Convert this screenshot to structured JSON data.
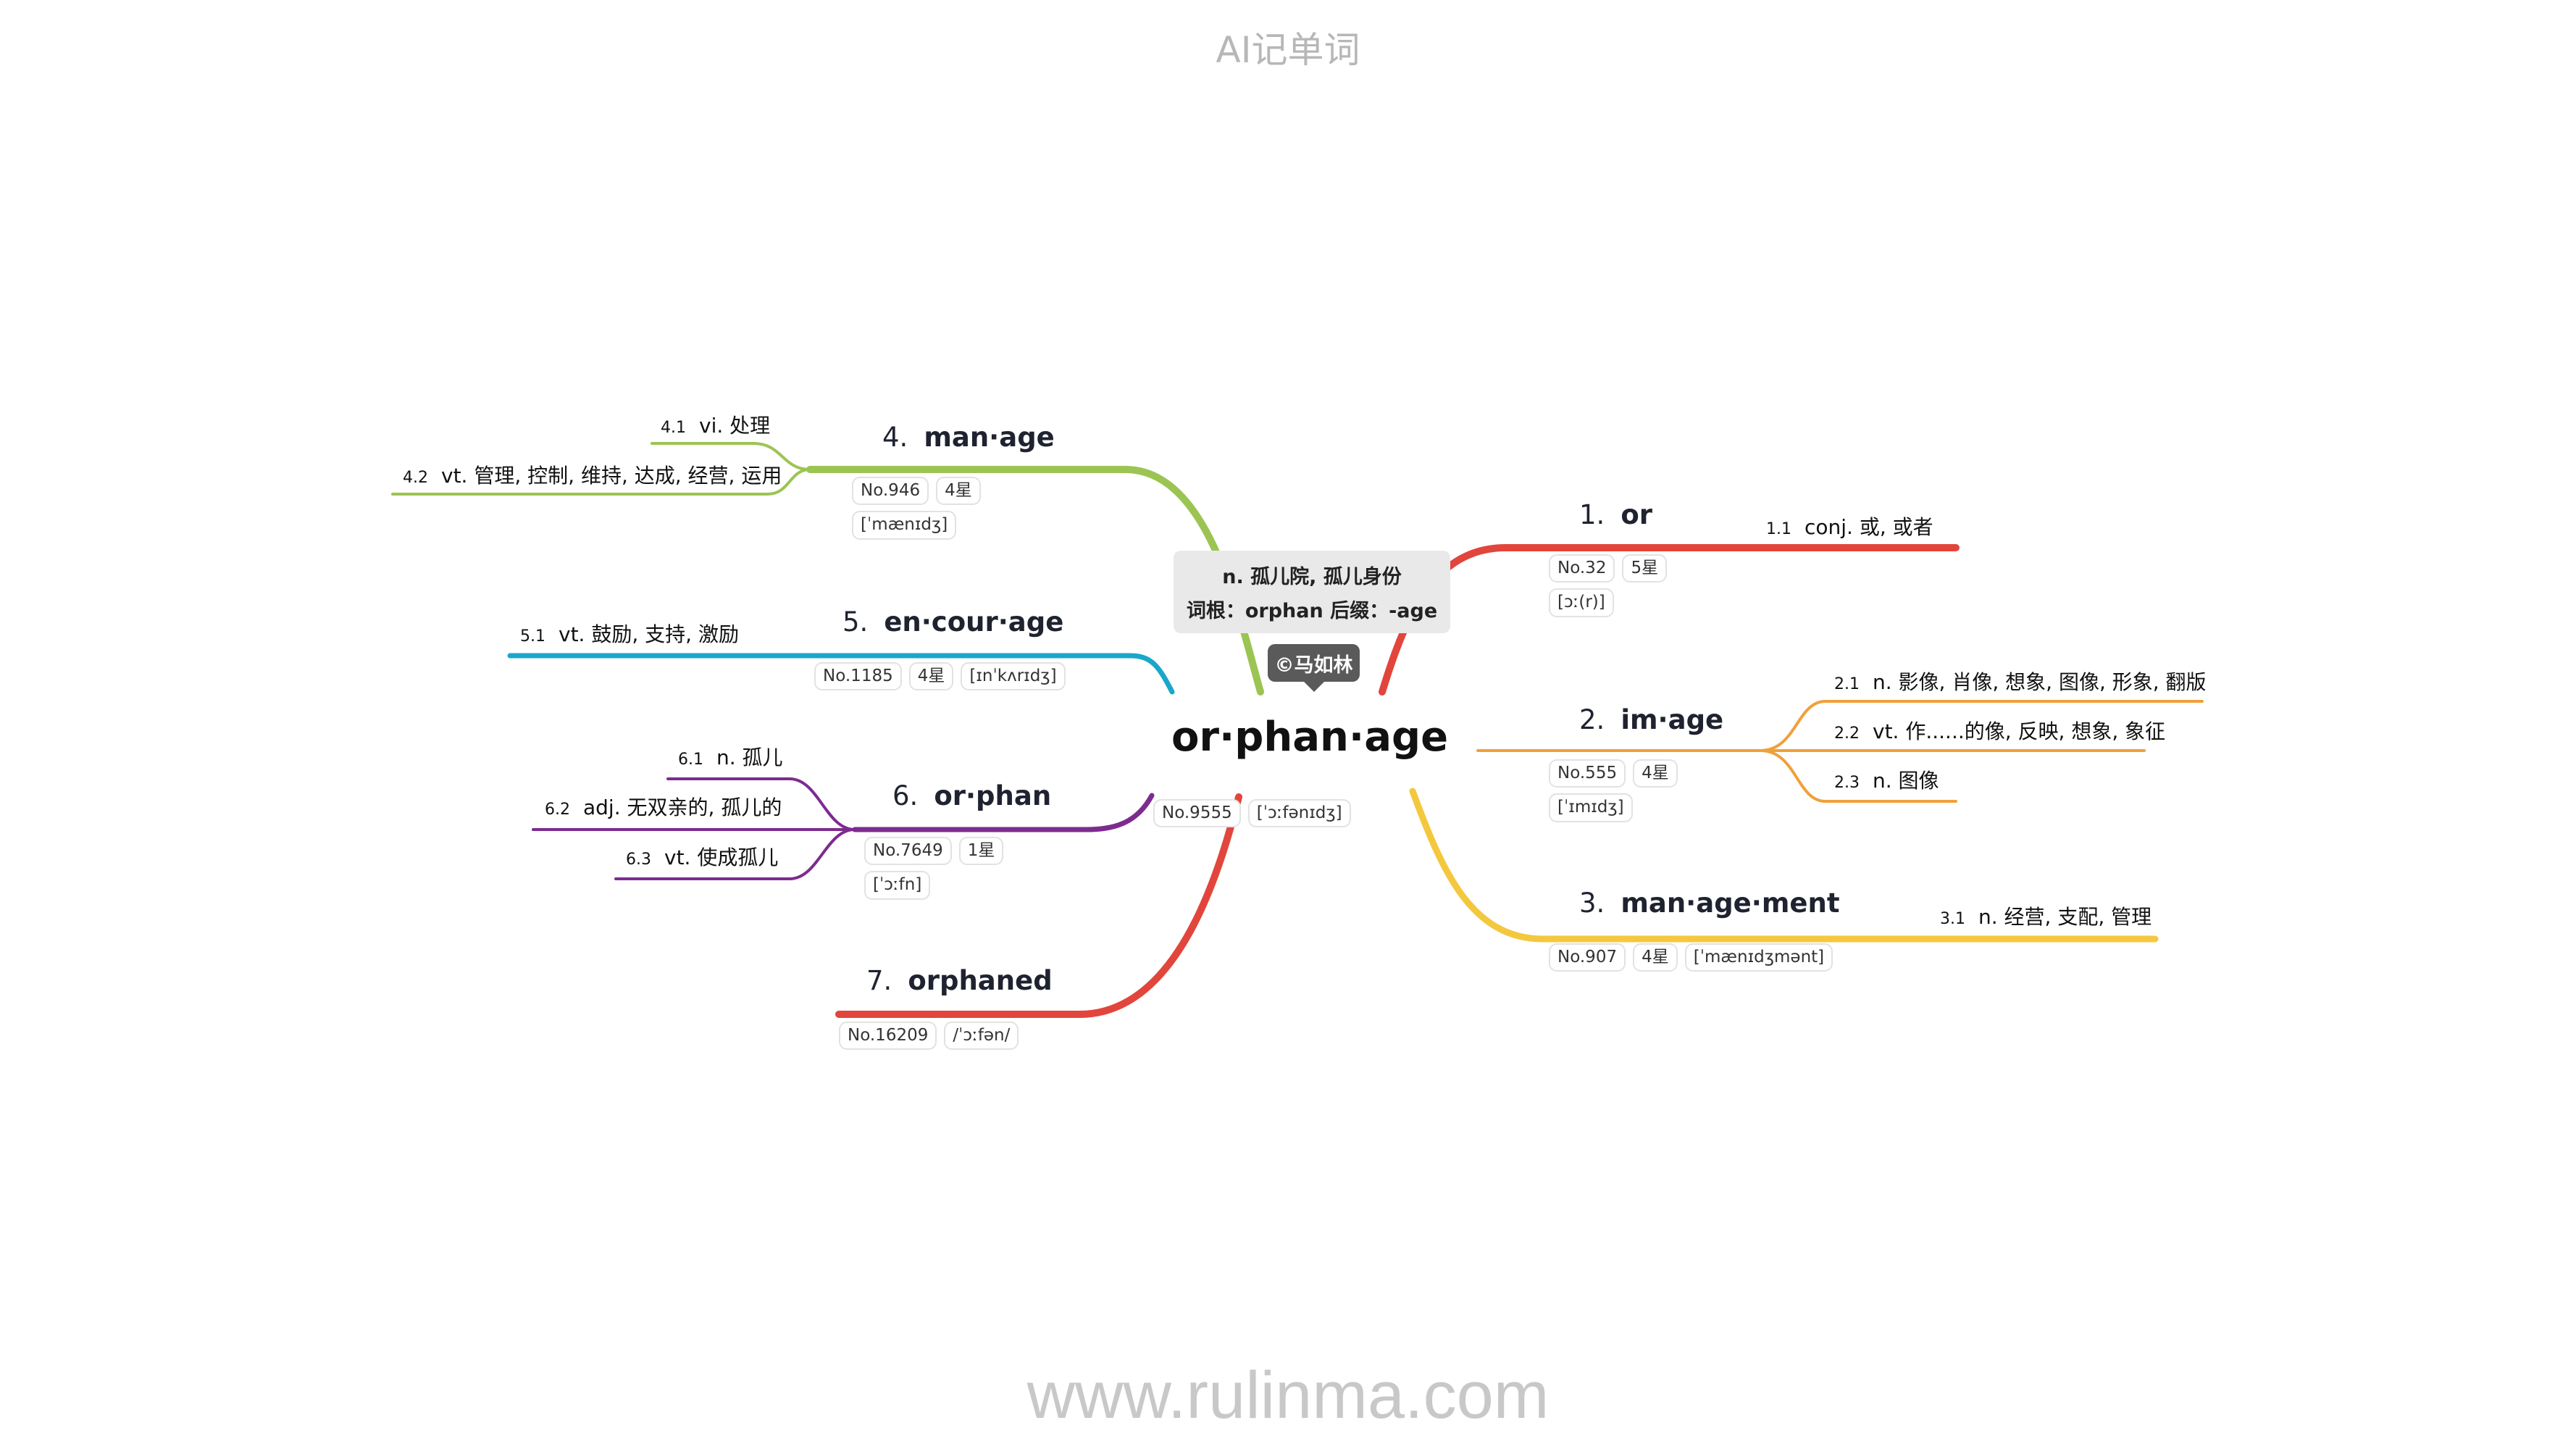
{
  "header": {
    "title": "AI记单词"
  },
  "footer": {
    "url": "www.rulinma.com"
  },
  "center": {
    "word": "or·phan·age",
    "callout_line1": "n. 孤儿院, 孤儿身份",
    "callout_line2": "词根：orphan 后缀：-age",
    "copyright": "©马如林",
    "tags": [
      "No.9555",
      "[ˈɔːfənɪdʒ]"
    ]
  },
  "branches": [
    {
      "number": "1.",
      "word": "or",
      "color": "#e2453c",
      "tags": [
        "No.32",
        "5星",
        "[ɔː(r)]"
      ],
      "definitions": [
        {
          "number": "1.1",
          "text": "conj. 或, 或者"
        }
      ]
    },
    {
      "number": "2.",
      "word": "im·age",
      "color": "#f0a03a",
      "tags": [
        "No.555",
        "4星",
        "[ˈɪmɪdʒ]"
      ],
      "definitions": [
        {
          "number": "2.1",
          "text": "n. 影像, 肖像, 想象, 图像, 形象, 翻版"
        },
        {
          "number": "2.2",
          "text": "vt. 作......的像, 反映, 想象, 象征"
        },
        {
          "number": "2.3",
          "text": "n. 图像"
        }
      ]
    },
    {
      "number": "3.",
      "word": "man·age·ment",
      "color": "#f4c83e",
      "tags": [
        "No.907",
        "4星",
        "[ˈmænɪdʒmənt]"
      ],
      "definitions": [
        {
          "number": "3.1",
          "text": "n. 经营, 支配, 管理"
        }
      ]
    },
    {
      "number": "4.",
      "word": "man·age",
      "color": "#9cc453",
      "tags": [
        "No.946",
        "4星",
        "[ˈmænɪdʒ]"
      ],
      "definitions": [
        {
          "number": "4.1",
          "text": "vi. 处理"
        },
        {
          "number": "4.2",
          "text": "vt. 管理, 控制, 维持, 达成, 经营, 运用"
        }
      ]
    },
    {
      "number": "5.",
      "word": "en·cour·age",
      "color": "#1aa7c9",
      "tags": [
        "No.1185",
        "4星",
        "[ɪnˈkʌrɪdʒ]"
      ],
      "definitions": [
        {
          "number": "5.1",
          "text": "vt. 鼓励, 支持, 激励"
        }
      ]
    },
    {
      "number": "6.",
      "word": "or·phan",
      "color": "#7d2b8f",
      "tags": [
        "No.7649",
        "1星",
        "[ˈɔːfn]"
      ],
      "definitions": [
        {
          "number": "6.1",
          "text": "n. 孤儿"
        },
        {
          "number": "6.2",
          "text": "adj. 无双亲的, 孤儿的"
        },
        {
          "number": "6.3",
          "text": "vt. 使成孤儿"
        }
      ]
    },
    {
      "number": "7.",
      "word": "orphaned",
      "color": "#e2453c",
      "tags": [
        "No.16209",
        "/ˈɔːfən/"
      ],
      "definitions": []
    }
  ]
}
